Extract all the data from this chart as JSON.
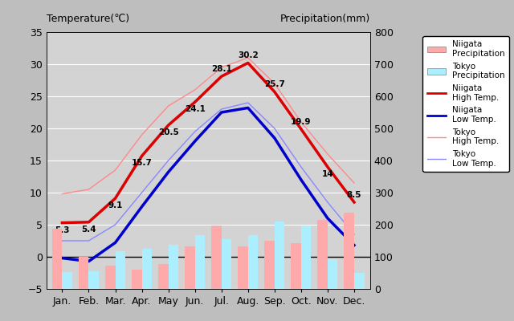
{
  "months": [
    "Jan.",
    "Feb.",
    "Mar.",
    "Apr.",
    "May",
    "Jun.",
    "Jul.",
    "Aug.",
    "Sep.",
    "Oct.",
    "Nov.",
    "Dec."
  ],
  "niigata_high": [
    5.3,
    5.4,
    9.1,
    15.7,
    20.5,
    24.1,
    28.1,
    30.2,
    25.7,
    19.9,
    14.0,
    8.5
  ],
  "niigata_low": [
    -0.2,
    -0.7,
    2.2,
    7.8,
    13.2,
    18.0,
    22.5,
    23.2,
    18.5,
    12.0,
    6.0,
    1.8
  ],
  "tokyo_high": [
    9.8,
    10.5,
    13.5,
    19.0,
    23.5,
    26.0,
    29.5,
    31.0,
    27.0,
    21.0,
    16.0,
    11.5
  ],
  "tokyo_low": [
    2.5,
    2.5,
    5.0,
    10.0,
    15.0,
    19.5,
    23.0,
    24.0,
    20.0,
    14.0,
    8.5,
    3.5
  ],
  "niigata_high_labels": [
    "5.3",
    "5.4",
    "9.1",
    "15.7",
    "20.5",
    "24.1",
    "28.1",
    "30.2",
    "25.7",
    "19.9",
    "14",
    "8.5"
  ],
  "niigata_precip_mm": [
    188,
    101,
    72,
    60,
    78,
    132,
    198,
    133,
    149,
    143,
    215,
    237
  ],
  "tokyo_precip_mm": [
    52,
    56,
    117,
    124,
    138,
    168,
    154,
    168,
    210,
    197,
    93,
    51
  ],
  "temp_ylim": [
    -5,
    35
  ],
  "precip_ylim": [
    0,
    800
  ],
  "niigata_high_color": "#dd0000",
  "niigata_low_color": "#0000cc",
  "tokyo_high_color": "#ff8888",
  "tokyo_low_color": "#8888ff",
  "niigata_precip_color": "#ffaaaa",
  "tokyo_precip_color": "#aaeeff",
  "title_temp": "Temperature(℃)",
  "title_precip": "Precipitation(mm)"
}
